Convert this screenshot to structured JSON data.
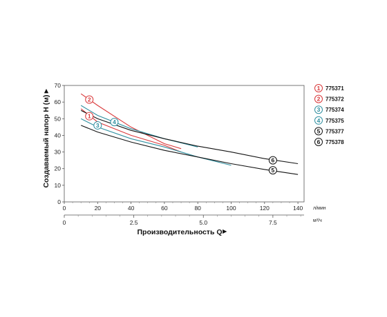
{
  "chart_data": {
    "type": "line",
    "xlabel": "Производительность Q",
    "ylabel": "Создаваемый напор H (м)",
    "x_unit": "л/мин",
    "x2_unit": "м³/ч",
    "xlim": [
      0,
      145
    ],
    "ylim": [
      0,
      70
    ],
    "x_ticks": [
      "0",
      "20",
      "40",
      "60",
      "80",
      "100",
      "120",
      "140"
    ],
    "x2_ticks": [
      "0",
      "2.5",
      "5.0",
      "7.5"
    ],
    "y_ticks": [
      "0",
      "10",
      "20",
      "30",
      "40",
      "50",
      "60",
      "70"
    ],
    "series": [
      {
        "name": "775371",
        "marker": "1",
        "color": "#d9383a",
        "x": [
          10,
          20,
          40,
          60,
          70
        ],
        "y": [
          56,
          48,
          40,
          34,
          30
        ]
      },
      {
        "name": "775372",
        "marker": "2",
        "color": "#d9383a",
        "x": [
          10,
          20,
          40,
          60,
          70
        ],
        "y": [
          65,
          58,
          45,
          35,
          32
        ]
      },
      {
        "name": "775374",
        "marker": "3",
        "color": "#2f8fa0",
        "x": [
          10,
          20,
          40,
          60,
          80,
          100
        ],
        "y": [
          50,
          45,
          38,
          33,
          27,
          22
        ]
      },
      {
        "name": "775375",
        "marker": "4",
        "color": "#2f8fa0",
        "x": [
          10,
          20,
          40,
          60,
          80
        ],
        "y": [
          58,
          52,
          44,
          38,
          33
        ]
      },
      {
        "name": "775377",
        "marker": "5",
        "color": "#111111",
        "x": [
          10,
          20,
          40,
          60,
          80,
          100,
          120,
          140
        ],
        "y": [
          46,
          42,
          36,
          31,
          27,
          23,
          19.5,
          16.5
        ]
      },
      {
        "name": "775378",
        "marker": "6",
        "color": "#111111",
        "x": [
          10,
          20,
          40,
          60,
          80,
          100,
          120,
          140
        ],
        "y": [
          55,
          50,
          43,
          38,
          33.5,
          30,
          26,
          23
        ]
      }
    ],
    "grid": false,
    "legend_position": "right"
  }
}
